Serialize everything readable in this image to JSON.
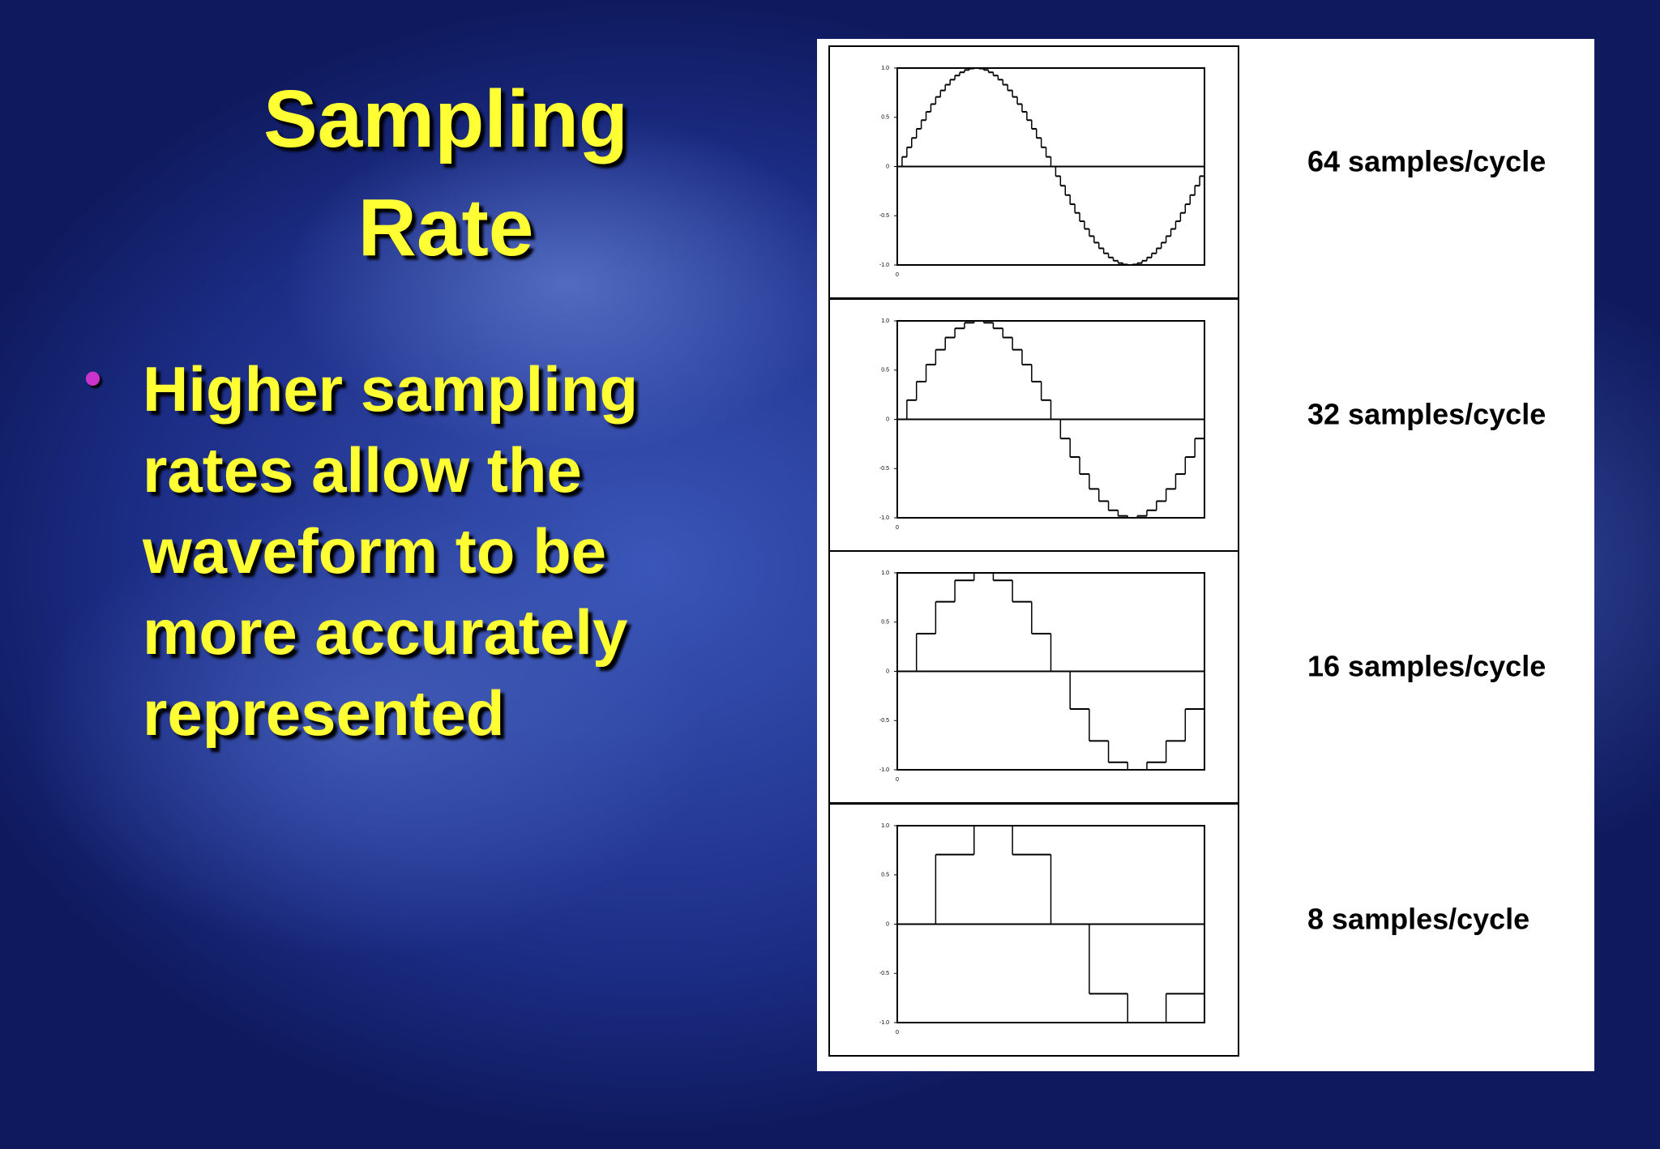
{
  "slide": {
    "title": "Sampling Rate",
    "bullet_lines": [
      "Higher sampling",
      "rates allow the",
      "waveform to be",
      "more accurately",
      "represented"
    ]
  },
  "chart_data": [
    {
      "type": "step",
      "title": "64 samples/cycle",
      "xlim": [
        0,
        64
      ],
      "xticks": [
        0
      ],
      "ylim": [
        -1,
        1
      ],
      "yticks": [
        {
          "value": -1,
          "label": "-1.0"
        },
        {
          "value": -0.5,
          "label": "-0.5"
        },
        0,
        {
          "value": 0.5,
          "label": "0.5"
        },
        {
          "value": 1,
          "label": "1.0"
        }
      ],
      "values": [
        0,
        0.098,
        0.195,
        0.29,
        0.383,
        0.471,
        0.556,
        0.634,
        0.707,
        0.773,
        0.831,
        0.882,
        0.924,
        0.957,
        0.981,
        0.995,
        1,
        0.995,
        0.981,
        0.957,
        0.924,
        0.882,
        0.831,
        0.773,
        0.707,
        0.634,
        0.556,
        0.471,
        0.383,
        0.29,
        0.195,
        0.098,
        0,
        -0.098,
        -0.195,
        -0.29,
        -0.383,
        -0.471,
        -0.556,
        -0.634,
        -0.707,
        -0.773,
        -0.831,
        -0.882,
        -0.924,
        -0.957,
        -0.981,
        -0.995,
        -1,
        -0.995,
        -0.981,
        -0.957,
        -0.924,
        -0.882,
        -0.831,
        -0.773,
        -0.707,
        -0.634,
        -0.556,
        -0.471,
        -0.383,
        -0.29,
        -0.195,
        -0.098
      ]
    },
    {
      "type": "step",
      "title": "32 samples/cycle",
      "xlim": [
        0,
        32
      ],
      "xticks": [
        0
      ],
      "ylim": [
        -1,
        1
      ],
      "yticks": [
        {
          "value": -1,
          "label": "-1.0"
        },
        {
          "value": -0.5,
          "label": "-0.5"
        },
        0,
        {
          "value": 0.5,
          "label": "0.5"
        },
        {
          "value": 1,
          "label": "1.0"
        }
      ],
      "values": [
        0,
        0.195,
        0.383,
        0.556,
        0.707,
        0.831,
        0.924,
        0.981,
        1,
        0.981,
        0.924,
        0.831,
        0.707,
        0.556,
        0.383,
        0.195,
        0,
        -0.195,
        -0.383,
        -0.556,
        -0.707,
        -0.831,
        -0.924,
        -0.981,
        -1,
        -0.981,
        -0.924,
        -0.831,
        -0.707,
        -0.556,
        -0.383,
        -0.195
      ]
    },
    {
      "type": "step",
      "title": "16 samples/cycle",
      "xlim": [
        0,
        16
      ],
      "xticks": [
        0
      ],
      "ylim": [
        -1,
        1
      ],
      "yticks": [
        {
          "value": -1,
          "label": "-1.0"
        },
        {
          "value": -0.5,
          "label": "-0.5"
        },
        0,
        {
          "value": 0.5,
          "label": "0.5"
        },
        {
          "value": 1,
          "label": "1.0"
        }
      ],
      "values": [
        0,
        0.383,
        0.707,
        0.924,
        1,
        0.924,
        0.707,
        0.383,
        0,
        -0.383,
        -0.707,
        -0.924,
        -1,
        -0.924,
        -0.707,
        -0.383
      ]
    },
    {
      "type": "step",
      "title": "8 samples/cycle",
      "xlim": [
        0,
        8
      ],
      "xticks": [
        0
      ],
      "ylim": [
        -1,
        1
      ],
      "yticks": [
        {
          "value": -1,
          "label": "-1.0"
        },
        {
          "value": -0.5,
          "label": "-0.5"
        },
        0,
        {
          "value": 0.5,
          "label": "0.5"
        },
        {
          "value": 1,
          "label": "1.0"
        }
      ],
      "values": [
        0,
        0.707,
        1,
        0.707,
        0,
        -0.707,
        -1,
        -0.707
      ]
    }
  ]
}
